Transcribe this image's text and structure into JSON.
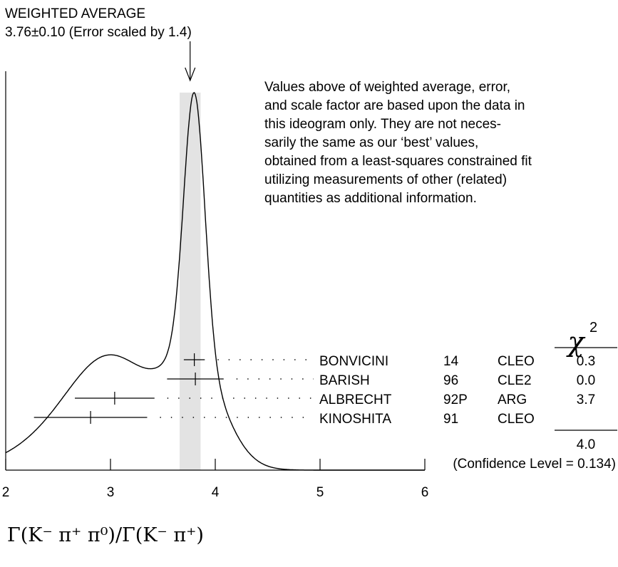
{
  "header": {
    "title": "WEIGHTED AVERAGE",
    "subtitle": "3.76±0.10 (Error scaled by 1.4)"
  },
  "note": {
    "lines": [
      "Values above of weighted average, error,",
      "and scale factor are based upon the data in",
      "this ideogram only.  They are not neces-",
      "sarily the same as our ‘best’ values,",
      "obtained from a least-squares constrained fit",
      "utilizing measurements of other (related)",
      "quantities as additional information."
    ]
  },
  "chi2_header": {
    "symbol": "χ",
    "exponent": "2"
  },
  "chi2_total": "4.0",
  "confidence_level": "(Confidence Level = 0.134)",
  "x_axis_label": "Γ(K⁻ π⁺ π⁰)/Γ(K⁻ π⁺)",
  "chart_data": {
    "type": "ideogram",
    "title": "WEIGHTED AVERAGE",
    "xlabel": "Γ(K⁻ π⁺ π⁰)/Γ(K⁻ π⁺)",
    "xlim": [
      2,
      6
    ],
    "x_ticks": [
      2,
      3,
      4,
      5,
      6
    ],
    "weighted_average": {
      "value": 3.76,
      "error": 0.1,
      "scale_factor": 1.4
    },
    "average_band": [
      3.66,
      3.86
    ],
    "measurements": [
      {
        "author": "BONVICINI",
        "year": "14",
        "experiment": "CLEO",
        "chi2": "0.3",
        "value": 3.8,
        "error_low": 0.1,
        "error_high": 0.1
      },
      {
        "author": "BARISH",
        "year": "96",
        "experiment": "CLE2",
        "chi2": "0.0",
        "value": 3.81,
        "error_low": 0.27,
        "error_high": 0.27
      },
      {
        "author": "ALBRECHT",
        "year": "92P",
        "experiment": "ARG",
        "chi2": "3.7",
        "value": 3.04,
        "error_low": 0.38,
        "error_high": 0.38
      },
      {
        "author": "KINOSHITA",
        "year": "91",
        "experiment": "CLEO",
        "chi2": "",
        "value": 2.81,
        "error_low": 0.54,
        "error_high": 0.54
      }
    ],
    "chi2_total": 4.0,
    "confidence_level": 0.134
  }
}
